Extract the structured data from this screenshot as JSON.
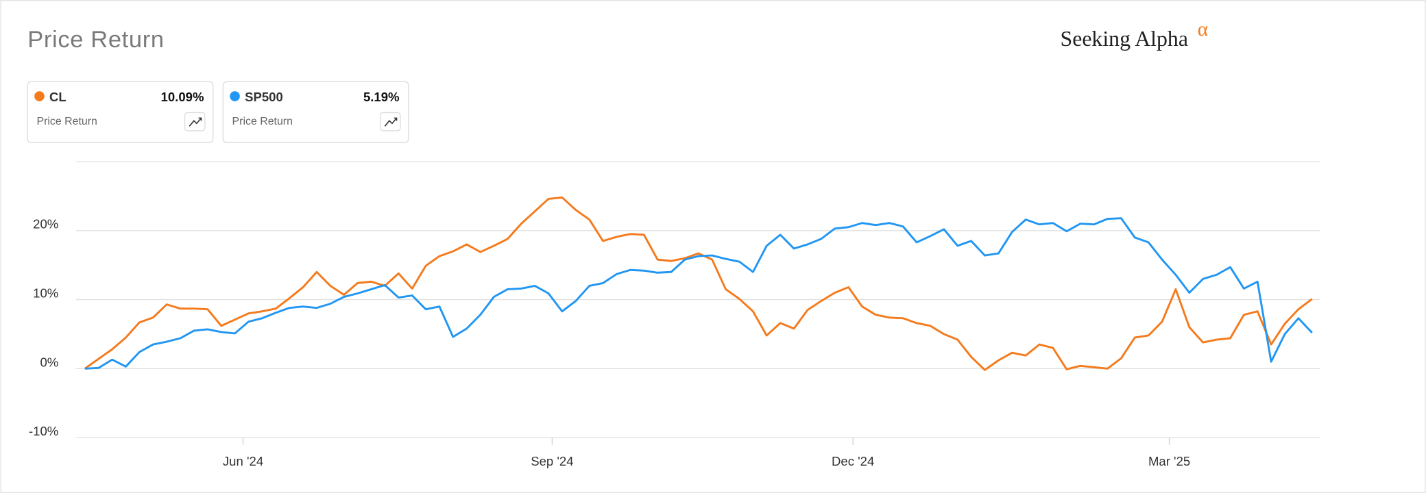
{
  "chart_data": {
    "type": "line",
    "title": "Price Return",
    "logo": "Seeking Alpha",
    "logo_mark": "α",
    "xlim": [
      -0.67,
      90.6
    ],
    "xticks": [
      {
        "value": 11.6,
        "label": "Jun '24"
      },
      {
        "value": 34.27,
        "label": "Sep '24"
      },
      {
        "value": 56.33,
        "label": "Dec '24"
      },
      {
        "value": 79.53,
        "label": "Mar '25"
      }
    ],
    "ylim": [
      -10,
      30
    ],
    "yticks": [
      {
        "value": -10,
        "label": "-10%"
      },
      {
        "value": 0,
        "label": "0%"
      },
      {
        "value": 10,
        "label": "10%"
      },
      {
        "value": 20,
        "label": "20%"
      }
    ],
    "grid": true,
    "series": [
      {
        "name": "CL",
        "color": "#f57a1c",
        "metric": "Price Return",
        "return_label": "10.09%",
        "values": [
          0,
          1.4,
          2.8,
          4.5,
          6.7,
          7.4,
          9.3,
          8.7,
          8.7,
          8.6,
          6.2,
          7.1,
          8.0,
          8.3,
          8.7,
          10.2,
          11.8,
          14.0,
          12.0,
          10.7,
          12.4,
          12.6,
          12.0,
          13.8,
          11.6,
          14.9,
          16.3,
          17.0,
          18.0,
          16.9,
          17.8,
          18.8,
          21.0,
          22.8,
          24.6,
          24.8,
          23.0,
          21.6,
          18.5,
          19.1,
          19.5,
          19.4,
          15.8,
          15.6,
          16.0,
          16.7,
          15.8,
          11.5,
          10.1,
          8.3,
          4.8,
          6.6,
          5.8,
          8.5,
          9.8,
          11.0,
          11.8,
          9.0,
          7.8,
          7.4,
          7.3,
          6.6,
          6.2,
          5.0,
          4.2,
          1.7,
          -0.2,
          1.2,
          2.3,
          1.9,
          3.5,
          3.0,
          -0.1,
          0.4,
          0.2,
          0.0,
          1.5,
          4.5,
          4.8,
          6.8,
          11.5,
          6.0,
          3.8,
          4.2,
          4.4,
          7.8,
          8.3,
          3.5,
          6.5,
          8.6,
          10.09
        ]
      },
      {
        "name": "SP500",
        "color": "#2196f3",
        "metric": "Price Return",
        "return_label": "5.19%",
        "values": [
          0,
          0.1,
          1.3,
          0.3,
          2.4,
          3.5,
          3.9,
          4.4,
          5.5,
          5.7,
          5.3,
          5.1,
          6.8,
          7.3,
          8.1,
          8.8,
          9.0,
          8.8,
          9.4,
          10.4,
          10.9,
          11.5,
          12.1,
          10.3,
          10.6,
          8.6,
          9.0,
          4.6,
          5.8,
          7.8,
          10.4,
          11.5,
          11.6,
          12.0,
          10.9,
          8.3,
          9.8,
          12.0,
          12.4,
          13.7,
          14.3,
          14.2,
          13.9,
          14.0,
          15.8,
          16.3,
          16.4,
          15.9,
          15.5,
          14.0,
          17.8,
          19.4,
          17.4,
          18.0,
          18.8,
          20.3,
          20.5,
          21.1,
          20.8,
          21.1,
          20.6,
          18.3,
          19.2,
          20.2,
          17.8,
          18.5,
          16.4,
          16.7,
          19.8,
          21.6,
          20.9,
          21.1,
          19.9,
          21.0,
          20.9,
          21.7,
          21.8,
          19.0,
          18.3,
          15.8,
          13.6,
          11.0,
          13.0,
          13.6,
          14.7,
          11.6,
          12.6,
          1.0,
          5.0,
          7.3,
          5.19
        ]
      }
    ]
  }
}
